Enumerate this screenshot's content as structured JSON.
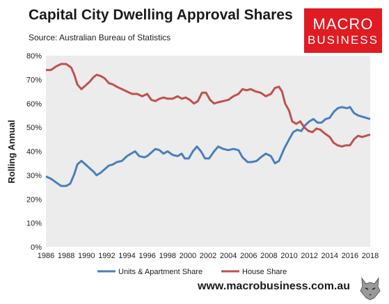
{
  "header": {
    "title": "Capital City Dwelling Approval Shares",
    "source": "Source: Australian Bureau of Statistics"
  },
  "logo": {
    "line1": "MACRO",
    "line2": "BUSINESS",
    "color": "#e01b22"
  },
  "footer": {
    "website": "www.macrobusiness.com.au",
    "mascot_icon": "wolf-icon"
  },
  "chart_data": {
    "type": "line",
    "title": "Capital City Dwelling Approval Shares",
    "ylabel": "Rolling Annual",
    "xlabel": "",
    "xlim": [
      1986,
      2018
    ],
    "ylim": [
      0,
      80
    ],
    "x_ticks": [
      "1986",
      "1988",
      "1990",
      "1992",
      "1994",
      "1996",
      "1998",
      "2000",
      "2002",
      "2004",
      "2006",
      "2008",
      "2010",
      "2012",
      "2014",
      "2016",
      "2018"
    ],
    "y_ticks": [
      "0%",
      "10%",
      "20%",
      "30%",
      "40%",
      "50%",
      "60%",
      "70%",
      "80%"
    ],
    "grid": false,
    "legend": "bottom",
    "series": [
      {
        "name": "Units & Apartment Share",
        "color": "#4a7ebb",
        "points": [
          [
            1986.0,
            29.5
          ],
          [
            1986.5,
            28.5
          ],
          [
            1987.0,
            27
          ],
          [
            1987.5,
            25.5
          ],
          [
            1988.0,
            25.5
          ],
          [
            1988.4,
            26.5
          ],
          [
            1988.8,
            30.5
          ],
          [
            1989.1,
            34.5
          ],
          [
            1989.5,
            36
          ],
          [
            1989.9,
            34.5
          ],
          [
            1990.3,
            33
          ],
          [
            1990.7,
            31.5
          ],
          [
            1991.0,
            30
          ],
          [
            1991.4,
            31
          ],
          [
            1991.8,
            32.5
          ],
          [
            1992.2,
            34
          ],
          [
            1992.6,
            34.5
          ],
          [
            1993.0,
            35.5
          ],
          [
            1993.5,
            36
          ],
          [
            1994.0,
            38
          ],
          [
            1994.4,
            39
          ],
          [
            1994.8,
            40
          ],
          [
            1995.2,
            38
          ],
          [
            1995.7,
            37.5
          ],
          [
            1996.0,
            38
          ],
          [
            1996.4,
            39.5
          ],
          [
            1996.8,
            41
          ],
          [
            1997.2,
            40.5
          ],
          [
            1997.6,
            39
          ],
          [
            1998.0,
            40
          ],
          [
            1998.5,
            38.5
          ],
          [
            1999.0,
            38
          ],
          [
            1999.4,
            39
          ],
          [
            1999.7,
            37
          ],
          [
            2000.1,
            37
          ],
          [
            2000.5,
            40
          ],
          [
            2000.9,
            42
          ],
          [
            2001.3,
            40
          ],
          [
            2001.7,
            37
          ],
          [
            2002.1,
            37
          ],
          [
            2002.6,
            40
          ],
          [
            2003.0,
            42
          ],
          [
            2003.5,
            41
          ],
          [
            2004.0,
            40.5
          ],
          [
            2004.5,
            41
          ],
          [
            2005.0,
            40.5
          ],
          [
            2005.4,
            37.5
          ],
          [
            2005.9,
            35.5
          ],
          [
            2006.3,
            35.5
          ],
          [
            2006.8,
            36
          ],
          [
            2007.2,
            37.5
          ],
          [
            2007.7,
            39
          ],
          [
            2008.2,
            38
          ],
          [
            2008.6,
            35
          ],
          [
            2009.0,
            36
          ],
          [
            2009.5,
            41
          ],
          [
            2010.0,
            45
          ],
          [
            2010.4,
            48
          ],
          [
            2010.8,
            49
          ],
          [
            2011.2,
            48.5
          ],
          [
            2011.6,
            51
          ],
          [
            2012.0,
            52.5
          ],
          [
            2012.4,
            53.5
          ],
          [
            2012.8,
            52
          ],
          [
            2013.2,
            52
          ],
          [
            2013.6,
            53.5
          ],
          [
            2014.0,
            54
          ],
          [
            2014.4,
            56.5
          ],
          [
            2014.8,
            58
          ],
          [
            2015.2,
            58.5
          ],
          [
            2015.7,
            58
          ],
          [
            2016.0,
            58.5
          ],
          [
            2016.4,
            56
          ],
          [
            2016.8,
            55
          ],
          [
            2017.2,
            54.5
          ],
          [
            2017.6,
            54
          ],
          [
            2018.0,
            53.5
          ]
        ]
      },
      {
        "name": "House Share",
        "color": "#c0504d",
        "points": [
          [
            1986.0,
            74
          ],
          [
            1986.5,
            74
          ],
          [
            1987.0,
            75.5
          ],
          [
            1987.5,
            76.5
          ],
          [
            1988.0,
            76.5
          ],
          [
            1988.5,
            75
          ],
          [
            1988.8,
            72
          ],
          [
            1989.1,
            68
          ],
          [
            1989.5,
            66
          ],
          [
            1989.9,
            67.5
          ],
          [
            1990.3,
            69
          ],
          [
            1990.7,
            71
          ],
          [
            1991.0,
            72
          ],
          [
            1991.4,
            71.5
          ],
          [
            1991.8,
            70.5
          ],
          [
            1992.2,
            68.5
          ],
          [
            1992.6,
            68
          ],
          [
            1993.0,
            67
          ],
          [
            1993.5,
            66
          ],
          [
            1994.0,
            65
          ],
          [
            1994.5,
            64
          ],
          [
            1995.0,
            64
          ],
          [
            1995.5,
            63
          ],
          [
            1996.0,
            64
          ],
          [
            1996.4,
            61.5
          ],
          [
            1996.8,
            61
          ],
          [
            1997.2,
            62
          ],
          [
            1997.6,
            62.5
          ],
          [
            1998.0,
            62
          ],
          [
            1998.5,
            62
          ],
          [
            1999.0,
            63
          ],
          [
            1999.4,
            62
          ],
          [
            1999.8,
            62.5
          ],
          [
            2000.2,
            61.5
          ],
          [
            2000.6,
            60
          ],
          [
            2001.0,
            61
          ],
          [
            2001.4,
            64.5
          ],
          [
            2001.8,
            64.5
          ],
          [
            2002.2,
            61.5
          ],
          [
            2002.6,
            60
          ],
          [
            2003.0,
            60.5
          ],
          [
            2003.5,
            61
          ],
          [
            2004.0,
            61.5
          ],
          [
            2004.5,
            63
          ],
          [
            2005.0,
            64
          ],
          [
            2005.4,
            66
          ],
          [
            2005.8,
            65.5
          ],
          [
            2006.2,
            66
          ],
          [
            2006.7,
            65
          ],
          [
            2007.2,
            64.5
          ],
          [
            2007.7,
            63
          ],
          [
            2008.2,
            64
          ],
          [
            2008.6,
            66.5
          ],
          [
            2009.0,
            67
          ],
          [
            2009.3,
            65
          ],
          [
            2009.6,
            60
          ],
          [
            2010.0,
            57
          ],
          [
            2010.3,
            52.5
          ],
          [
            2010.7,
            51.5
          ],
          [
            2011.1,
            52.5
          ],
          [
            2011.5,
            50
          ],
          [
            2011.9,
            48.5
          ],
          [
            2012.3,
            48
          ],
          [
            2012.7,
            49.5
          ],
          [
            2013.1,
            49
          ],
          [
            2013.5,
            47.5
          ],
          [
            2014.0,
            46
          ],
          [
            2014.4,
            43.5
          ],
          [
            2014.8,
            42.5
          ],
          [
            2015.2,
            42
          ],
          [
            2015.6,
            42.5
          ],
          [
            2016.0,
            42.5
          ],
          [
            2016.4,
            45
          ],
          [
            2016.8,
            46.5
          ],
          [
            2017.2,
            46
          ],
          [
            2017.6,
            46.5
          ],
          [
            2018.0,
            47
          ]
        ]
      }
    ]
  }
}
